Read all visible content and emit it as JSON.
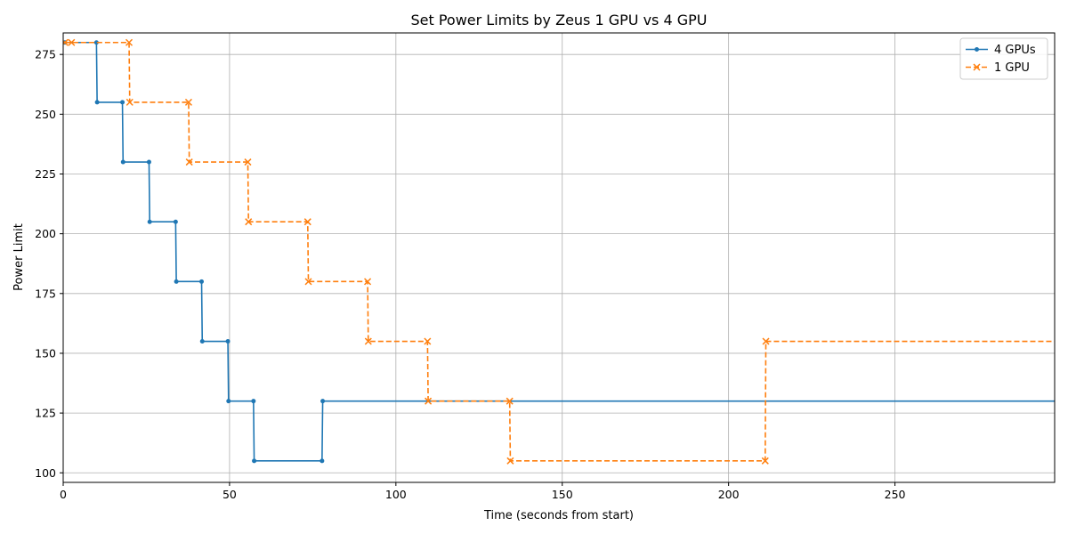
{
  "chart_data": {
    "type": "line",
    "title": "Set Power Limits by Zeus 1 GPU vs 4 GPU",
    "xlabel": "Time (seconds from start)",
    "ylabel": "Power Limit",
    "xlim": [
      0,
      298
    ],
    "ylim": [
      96,
      284
    ],
    "xticks": [
      0,
      50,
      100,
      150,
      200,
      250
    ],
    "yticks": [
      100,
      125,
      150,
      175,
      200,
      225,
      250,
      275
    ],
    "grid": true,
    "legend_position": "top-right",
    "step": "post",
    "series": [
      {
        "name": "4 GPUs",
        "color": "#1f77b4",
        "line_style": "solid",
        "marker": "dot",
        "x": [
          0.5,
          10,
          10.2,
          17.8,
          18,
          25.8,
          26,
          33.8,
          34,
          41.6,
          41.8,
          49.5,
          49.7,
          57.2,
          57.4,
          77.8,
          78,
          298
        ],
        "y": [
          280,
          280,
          255,
          255,
          230,
          230,
          205,
          205,
          180,
          180,
          155,
          155,
          130,
          130,
          105,
          105,
          130,
          130
        ],
        "markers_x": [
          0.5,
          10,
          10.2,
          17.8,
          18,
          25.8,
          26,
          33.8,
          34,
          41.6,
          41.8,
          49.5,
          49.7,
          57.2,
          57.4,
          77.8,
          78
        ],
        "markers_y": [
          280,
          280,
          255,
          255,
          230,
          230,
          205,
          205,
          180,
          180,
          155,
          155,
          130,
          130,
          105,
          105,
          130
        ]
      },
      {
        "name": "1 GPU",
        "color": "#ff7f0e",
        "line_style": "dashed",
        "marker": "x",
        "x": [
          0.5,
          2.5,
          19.8,
          20,
          37.7,
          37.9,
          55.5,
          55.7,
          73.5,
          73.7,
          91.5,
          91.7,
          109.5,
          109.7,
          134.2,
          134.4,
          211,
          211.2,
          298
        ],
        "y": [
          280,
          280,
          280,
          255,
          255,
          230,
          230,
          205,
          205,
          180,
          180,
          155,
          155,
          130,
          130,
          105,
          105,
          155,
          155
        ],
        "markers_x": [
          0.5,
          2.5,
          19.8,
          20,
          37.7,
          37.9,
          55.5,
          55.7,
          73.5,
          73.7,
          91.5,
          91.7,
          109.5,
          109.7,
          134.2,
          134.4,
          211,
          211.2
        ],
        "markers_y": [
          280,
          280,
          280,
          255,
          255,
          230,
          230,
          205,
          205,
          180,
          180,
          155,
          155,
          130,
          130,
          105,
          105,
          155
        ]
      }
    ]
  }
}
